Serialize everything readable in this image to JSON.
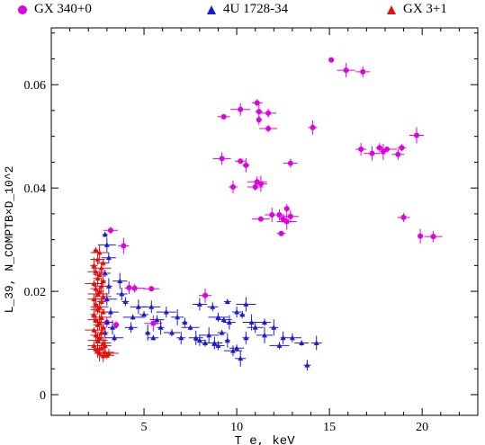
{
  "chart_data": {
    "type": "scatter",
    "xlabel": "T_e, keV",
    "ylabel": "L_39, N_COMPTB×D_10^2",
    "xlim": [
      0,
      23
    ],
    "ylim": [
      -0.004,
      0.071
    ],
    "xticks": [
      5,
      10,
      15,
      20
    ],
    "yticks": [
      0,
      0.02,
      0.04,
      0.06
    ],
    "grid": false,
    "legend_position": "top",
    "series": [
      {
        "name": "GX 340+0",
        "color": "#e000e0",
        "marker": "circle",
        "points": [
          [
            15.1,
            0.0648
          ],
          [
            15.9,
            0.0628
          ],
          [
            16.8,
            0.0625
          ],
          [
            11.1,
            0.0565
          ],
          [
            11.2,
            0.0548
          ],
          [
            10.2,
            0.0552
          ],
          [
            11.7,
            0.0545
          ],
          [
            9.3,
            0.0538
          ],
          [
            14.1,
            0.0517
          ],
          [
            11.2,
            0.0532
          ],
          [
            11.7,
            0.0515
          ],
          [
            19.7,
            0.0502
          ],
          [
            16.7,
            0.0475
          ],
          [
            17.7,
            0.0478
          ],
          [
            18.1,
            0.0475
          ],
          [
            17.3,
            0.0467
          ],
          [
            18.7,
            0.0465
          ],
          [
            18.9,
            0.0478
          ],
          [
            17.9,
            0.047
          ],
          [
            9.2,
            0.0457
          ],
          [
            12.9,
            0.0448
          ],
          [
            10.2,
            0.0452
          ],
          [
            10.5,
            0.0444
          ],
          [
            11.1,
            0.0412
          ],
          [
            11.0,
            0.0402
          ],
          [
            11.3,
            0.0408
          ],
          [
            9.8,
            0.0402
          ],
          [
            12.7,
            0.036
          ],
          [
            11.3,
            0.034
          ],
          [
            11.9,
            0.0348
          ],
          [
            12.3,
            0.0348
          ],
          [
            12.5,
            0.034
          ],
          [
            12.7,
            0.0335
          ],
          [
            12.9,
            0.0345
          ],
          [
            19.0,
            0.0343
          ],
          [
            12.4,
            0.0312
          ],
          [
            19.9,
            0.0307
          ],
          [
            20.6,
            0.0306
          ],
          [
            3.2,
            0.0318
          ],
          [
            3.9,
            0.0288
          ],
          [
            4.2,
            0.0207
          ],
          [
            4.5,
            0.0206
          ],
          [
            5.4,
            0.0205
          ],
          [
            8.3,
            0.0192
          ],
          [
            3.0,
            0.014
          ],
          [
            3.5,
            0.0135
          ],
          [
            5.5,
            0.0138
          ]
        ]
      },
      {
        "name": "4U 1728-34",
        "color": "#1a1ad8",
        "marker": "triangle",
        "points": [
          [
            2.9,
            0.031
          ],
          [
            3.0,
            0.029
          ],
          [
            3.1,
            0.0265
          ],
          [
            2.9,
            0.0235
          ],
          [
            3.1,
            0.021
          ],
          [
            3.0,
            0.0185
          ],
          [
            3.2,
            0.016
          ],
          [
            3.0,
            0.014
          ],
          [
            3.3,
            0.013
          ],
          [
            2.9,
            0.012
          ],
          [
            3.4,
            0.011
          ],
          [
            3.7,
            0.022
          ],
          [
            3.8,
            0.0195
          ],
          [
            4.0,
            0.018
          ],
          [
            4.4,
            0.015
          ],
          [
            4.7,
            0.017
          ],
          [
            4.3,
            0.013
          ],
          [
            5.0,
            0.0155
          ],
          [
            5.2,
            0.012
          ],
          [
            5.4,
            0.017
          ],
          [
            5.7,
            0.0145
          ],
          [
            5.5,
            0.011
          ],
          [
            5.9,
            0.013
          ],
          [
            6.2,
            0.016
          ],
          [
            6.5,
            0.012
          ],
          [
            6.8,
            0.015
          ],
          [
            7.0,
            0.011
          ],
          [
            7.2,
            0.014
          ],
          [
            7.5,
            0.013
          ],
          [
            7.8,
            0.011
          ],
          [
            8.0,
            0.0105
          ],
          [
            8.3,
            0.01
          ],
          [
            8.5,
            0.0115
          ],
          [
            8.8,
            0.01
          ],
          [
            9.0,
            0.0095
          ],
          [
            9.2,
            0.012
          ],
          [
            9.5,
            0.0105
          ],
          [
            9.8,
            0.0085
          ],
          [
            10.0,
            0.009
          ],
          [
            10.2,
            0.007
          ],
          [
            10.5,
            0.011
          ],
          [
            9.0,
            0.015
          ],
          [
            9.3,
            0.0145
          ],
          [
            9.6,
            0.014
          ],
          [
            10.0,
            0.016
          ],
          [
            10.3,
            0.0155
          ],
          [
            10.8,
            0.014
          ],
          [
            8.0,
            0.0175
          ],
          [
            8.7,
            0.017
          ],
          [
            9.5,
            0.018
          ],
          [
            10.5,
            0.0175
          ],
          [
            11.0,
            0.013
          ],
          [
            11.5,
            0.014
          ],
          [
            12.0,
            0.013
          ],
          [
            12.5,
            0.011
          ],
          [
            13.0,
            0.011
          ],
          [
            13.5,
            0.01
          ],
          [
            14.3,
            0.01
          ],
          [
            13.8,
            0.0057
          ],
          [
            12.3,
            0.0095
          ],
          [
            11.5,
            0.0115
          ]
        ]
      },
      {
        "name": "GX 3+1",
        "color": "#e01010",
        "marker": "triangle",
        "points": [
          [
            2.4,
            0.028
          ],
          [
            2.6,
            0.0275
          ],
          [
            2.5,
            0.0262
          ],
          [
            2.8,
            0.0255
          ],
          [
            2.3,
            0.025
          ],
          [
            2.7,
            0.0245
          ],
          [
            2.4,
            0.0238
          ],
          [
            2.6,
            0.0232
          ],
          [
            2.5,
            0.0225
          ],
          [
            2.8,
            0.022
          ],
          [
            2.3,
            0.0215
          ],
          [
            2.7,
            0.021
          ],
          [
            2.4,
            0.0205
          ],
          [
            2.6,
            0.02
          ],
          [
            2.5,
            0.0195
          ],
          [
            2.8,
            0.019
          ],
          [
            2.3,
            0.0185
          ],
          [
            2.7,
            0.018
          ],
          [
            2.4,
            0.0175
          ],
          [
            2.6,
            0.017
          ],
          [
            2.5,
            0.0165
          ],
          [
            2.8,
            0.016
          ],
          [
            2.3,
            0.0155
          ],
          [
            2.7,
            0.015
          ],
          [
            2.4,
            0.0145
          ],
          [
            2.6,
            0.014
          ],
          [
            2.5,
            0.0135
          ],
          [
            2.8,
            0.013
          ],
          [
            2.3,
            0.0125
          ],
          [
            2.7,
            0.012
          ],
          [
            2.4,
            0.0115
          ],
          [
            2.6,
            0.011
          ],
          [
            2.5,
            0.0105
          ],
          [
            2.8,
            0.01
          ],
          [
            2.3,
            0.0095
          ],
          [
            2.7,
            0.009
          ],
          [
            2.5,
            0.0085
          ],
          [
            2.9,
            0.0082
          ],
          [
            3.0,
            0.0076
          ],
          [
            2.6,
            0.008
          ],
          [
            2.8,
            0.0075
          ],
          [
            3.1,
            0.008
          ],
          [
            2.4,
            0.0088
          ],
          [
            2.9,
            0.0095
          ]
        ]
      }
    ]
  }
}
